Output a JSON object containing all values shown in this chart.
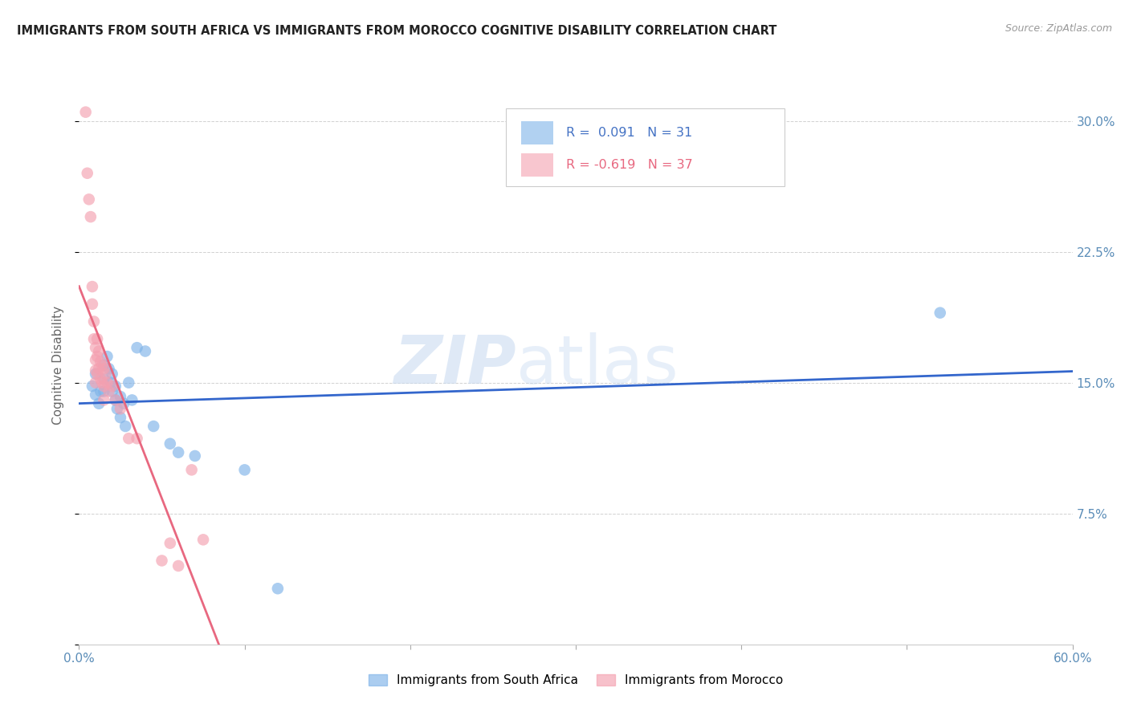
{
  "title": "IMMIGRANTS FROM SOUTH AFRICA VS IMMIGRANTS FROM MOROCCO COGNITIVE DISABILITY CORRELATION CHART",
  "source": "Source: ZipAtlas.com",
  "ylabel": "Cognitive Disability",
  "xlim": [
    0.0,
    0.6
  ],
  "ylim": [
    0.0,
    0.32
  ],
  "xticks": [
    0.0,
    0.1,
    0.2,
    0.3,
    0.4,
    0.5,
    0.6
  ],
  "yticks": [
    0.0,
    0.075,
    0.15,
    0.225,
    0.3
  ],
  "ytick_labels": [
    "",
    "7.5%",
    "15.0%",
    "22.5%",
    "30.0%"
  ],
  "grid_color": "#cccccc",
  "background_color": "#ffffff",
  "south_africa_color": "#7EB3E8",
  "morocco_color": "#F4A0B0",
  "south_africa_line_color": "#3366CC",
  "morocco_line_color": "#E86880",
  "R_south_africa": 0.091,
  "N_south_africa": 31,
  "R_morocco": -0.619,
  "N_morocco": 37,
  "legend_label_sa": "Immigrants from South Africa",
  "legend_label_mo": "Immigrants from Morocco",
  "sa_x": [
    0.008,
    0.01,
    0.01,
    0.012,
    0.013,
    0.015,
    0.015,
    0.015,
    0.017,
    0.018,
    0.019,
    0.02,
    0.02,
    0.022,
    0.022,
    0.023,
    0.025,
    0.025,
    0.027,
    0.028,
    0.03,
    0.032,
    0.035,
    0.04,
    0.045,
    0.055,
    0.06,
    0.07,
    0.1,
    0.12,
    0.52
  ],
  "sa_y": [
    0.148,
    0.155,
    0.143,
    0.138,
    0.145,
    0.16,
    0.152,
    0.145,
    0.165,
    0.158,
    0.15,
    0.155,
    0.145,
    0.14,
    0.148,
    0.135,
    0.142,
    0.13,
    0.138,
    0.125,
    0.15,
    0.14,
    0.17,
    0.168,
    0.125,
    0.115,
    0.11,
    0.108,
    0.1,
    0.032,
    0.19
  ],
  "mo_x": [
    0.004,
    0.005,
    0.006,
    0.007,
    0.008,
    0.008,
    0.009,
    0.009,
    0.01,
    0.01,
    0.01,
    0.01,
    0.011,
    0.011,
    0.011,
    0.012,
    0.012,
    0.013,
    0.013,
    0.014,
    0.014,
    0.015,
    0.015,
    0.015,
    0.016,
    0.017,
    0.018,
    0.02,
    0.022,
    0.025,
    0.03,
    0.035,
    0.05,
    0.055,
    0.06,
    0.068,
    0.075
  ],
  "mo_y": [
    0.305,
    0.27,
    0.255,
    0.245,
    0.205,
    0.195,
    0.185,
    0.175,
    0.17,
    0.163,
    0.157,
    0.15,
    0.175,
    0.165,
    0.155,
    0.168,
    0.158,
    0.162,
    0.152,
    0.16,
    0.15,
    0.158,
    0.148,
    0.14,
    0.155,
    0.15,
    0.145,
    0.148,
    0.14,
    0.135,
    0.118,
    0.118,
    0.048,
    0.058,
    0.045,
    0.1,
    0.06
  ],
  "sa_line_x0": 0.0,
  "sa_line_x1": 0.6,
  "mo_line_x0": 0.0,
  "mo_line_x1": 0.42
}
